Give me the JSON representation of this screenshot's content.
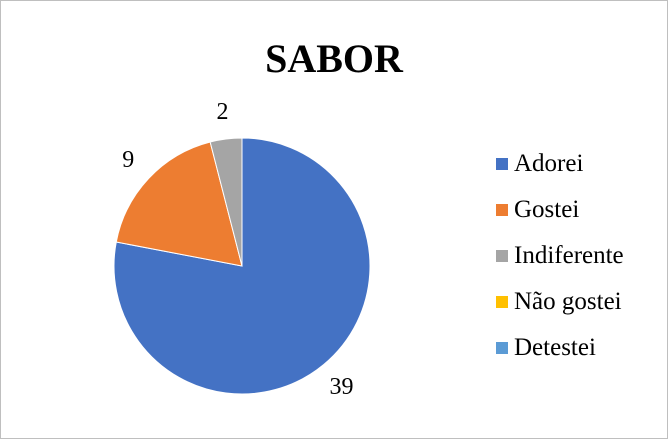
{
  "chart_data": {
    "type": "pie",
    "title": "SABOR",
    "categories": [
      "Adorei",
      "Gostei",
      "Indiferente",
      "Não gostei",
      "Detestei"
    ],
    "values": [
      39,
      9,
      2,
      0,
      0
    ],
    "data_labels": [
      "39",
      "9",
      "2",
      "",
      ""
    ],
    "colors": [
      "#4472c4",
      "#ed7d31",
      "#a5a5a5",
      "#ffc000",
      "#5b9bd5"
    ],
    "legend": "right"
  }
}
